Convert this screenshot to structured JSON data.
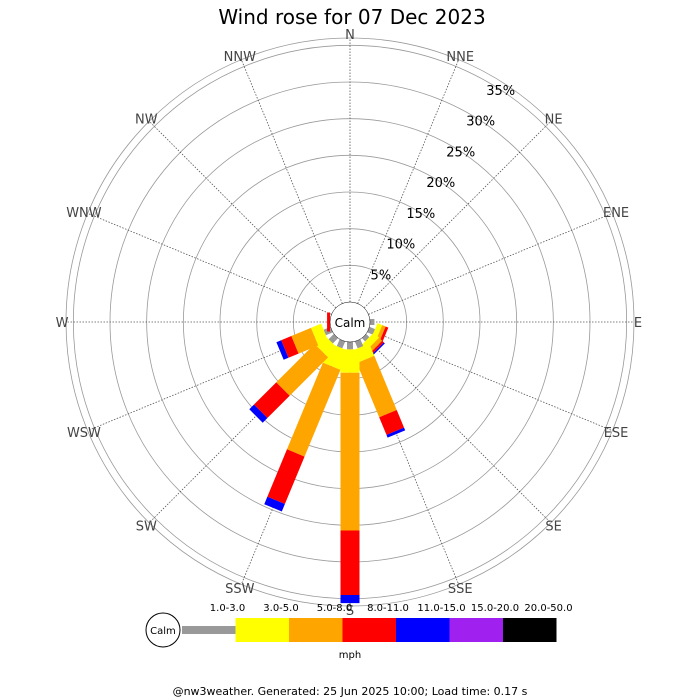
{
  "chart_data": {
    "type": "wind-rose",
    "title": "Wind rose for 07 Dec 2023",
    "directions": [
      "N",
      "NNE",
      "NE",
      "ENE",
      "E",
      "ESE",
      "SE",
      "SSE",
      "S",
      "SSW",
      "SW",
      "WSW",
      "W",
      "WNW",
      "NW",
      "NNW"
    ],
    "radial_ticks": [
      "5%",
      "10%",
      "15%",
      "20%",
      "25%",
      "30%",
      "35%"
    ],
    "radial_tick_values": [
      5,
      10,
      15,
      20,
      25,
      30,
      35
    ],
    "rmax": 36,
    "calm_label": "Calm",
    "unit": "mph",
    "speed_bins": [
      {
        "label": "1.0-3.0",
        "color": "#999999"
      },
      {
        "label": "3.0-5.0",
        "color": "#ffff00"
      },
      {
        "label": "5.0-8.0",
        "color": "#ffa500"
      },
      {
        "label": "8.0-11.0",
        "color": "#ff0000"
      },
      {
        "label": "11.0-15.0",
        "color": "#0000ff"
      },
      {
        "label": "15.0-20.0",
        "color": "#a020f0"
      },
      {
        "label": "20.0-50.0",
        "color": "#000000"
      }
    ],
    "series": [
      {
        "direction": "E",
        "values": [
          0.6,
          0,
          0,
          0,
          0,
          0,
          0
        ]
      },
      {
        "direction": "ESE",
        "values": [
          0.8,
          0.7,
          0.5,
          0.4,
          0,
          0,
          0
        ]
      },
      {
        "direction": "SE",
        "values": [
          0.6,
          1.0,
          0.6,
          0.3,
          0.2,
          0,
          0
        ]
      },
      {
        "direction": "SSE",
        "values": [
          1.0,
          1.8,
          8.0,
          2.6,
          0.4,
          0,
          0
        ]
      },
      {
        "direction": "S",
        "values": [
          1.0,
          3.2,
          21.5,
          8.8,
          1.1,
          0,
          0
        ]
      },
      {
        "direction": "SSW",
        "values": [
          1.0,
          2.8,
          12.8,
          7.0,
          1.1,
          0,
          0
        ]
      },
      {
        "direction": "SW",
        "values": [
          1.0,
          1.8,
          7.4,
          4.3,
          0.9,
          0,
          0
        ]
      },
      {
        "direction": "WSW",
        "values": [
          1.0,
          1.5,
          2.9,
          1.5,
          0.7,
          0,
          0
        ]
      },
      {
        "direction": "W",
        "values": [
          0,
          0,
          0,
          0.4,
          0,
          0,
          0
        ]
      }
    ]
  },
  "footer": "@nw3weather. Generated: 25 Jun 2025 10:00; Load time: 0.17 s"
}
